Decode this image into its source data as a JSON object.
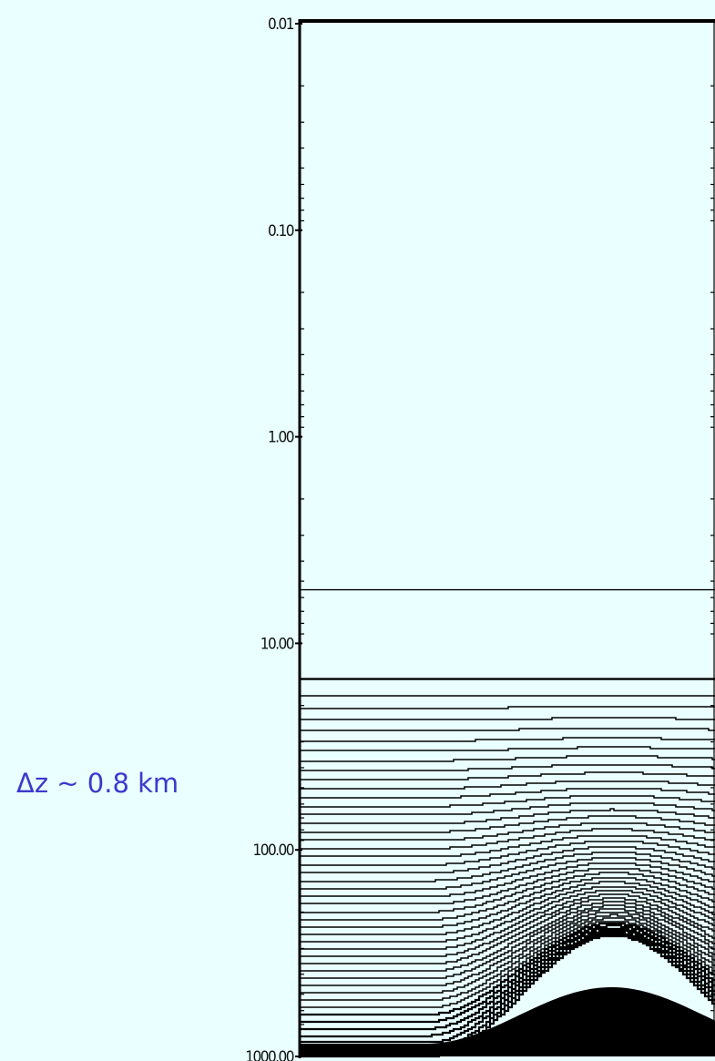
{
  "chart_data": {
    "type": "line",
    "title": "",
    "xlabel": "",
    "ylabel": "",
    "y_scale": "log",
    "y_inverted": true,
    "ylim": [
      1000.0,
      0.01
    ],
    "y_ticks": [
      0.01,
      0.1,
      1.0,
      10.0,
      100.0,
      1000.0
    ],
    "y_tick_labels": [
      "0.01",
      "0.10",
      "1.00",
      "10.00",
      "100.00",
      "1000.00"
    ],
    "x_ticks": [],
    "grid": false,
    "legend": "none",
    "line_color": "#000000",
    "flat_levels": [
      5.5,
      14.8
    ],
    "terrain_following_levels": {
      "count": 46,
      "surface_value": 1000.0,
      "top_value": 14.8,
      "bump_center_x_fraction": 0.75,
      "bump_halfwidth_x_fraction": 0.28,
      "bump_surface_rise_fraction": 0.7
    },
    "annotations": [
      {
        "text": "Δz ~ 0.8 km"
      }
    ]
  },
  "colors": {
    "background": "#eaffff",
    "plot_background": "#eaffff",
    "axis": "#000000",
    "annotation": "#3a3acd"
  }
}
